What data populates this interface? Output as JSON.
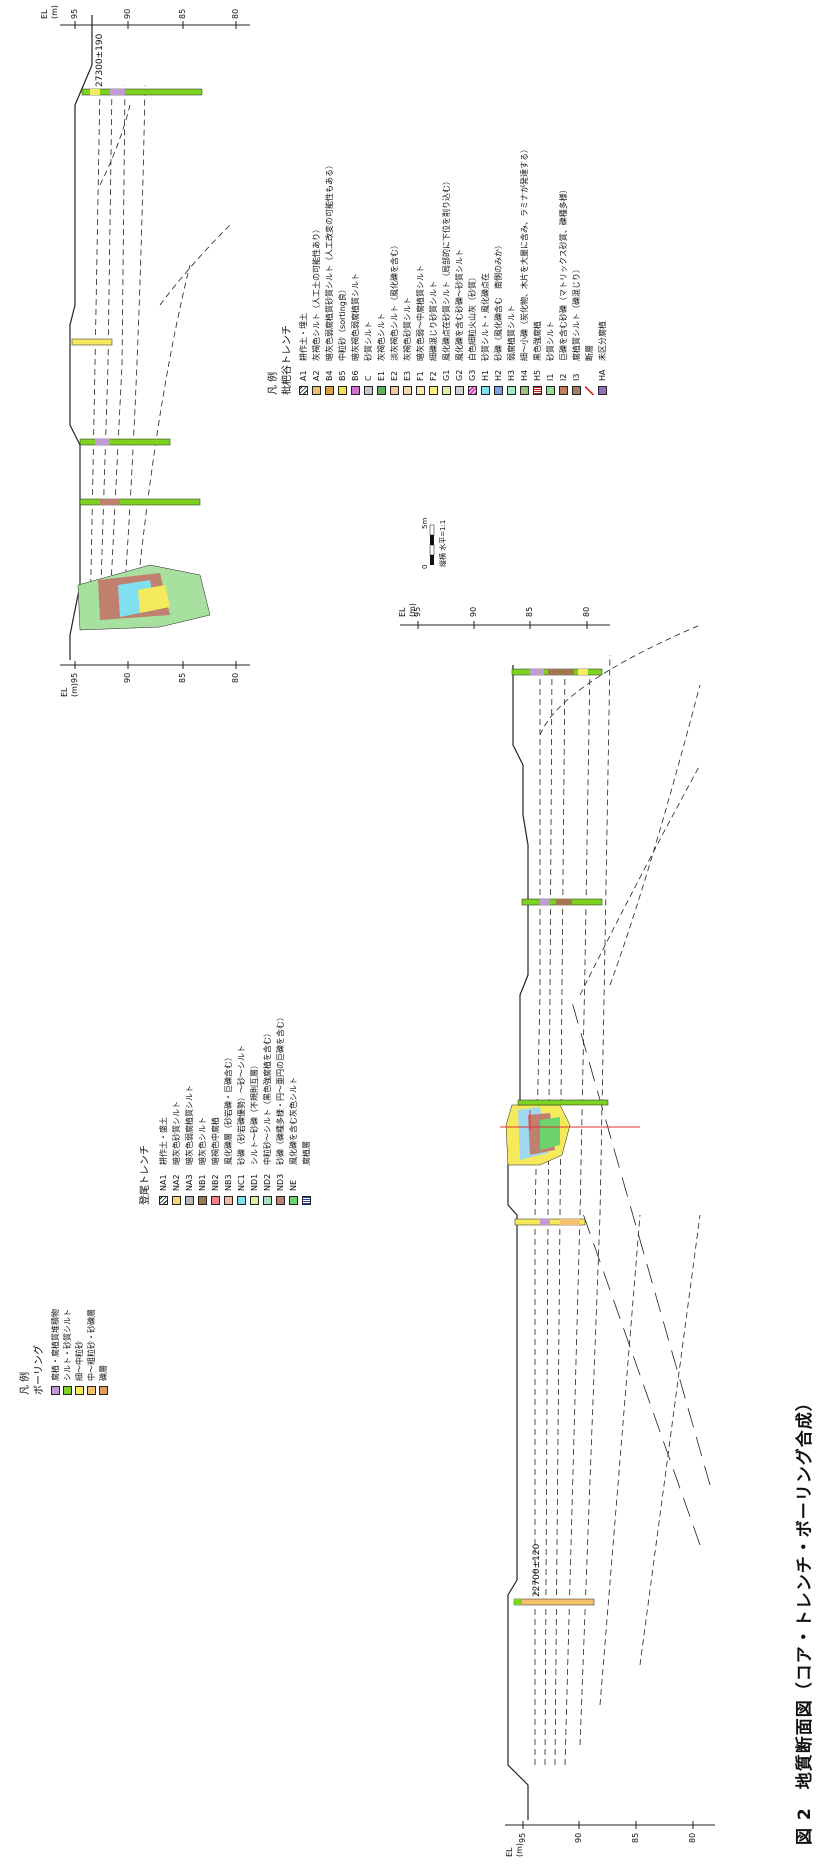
{
  "figure": {
    "title": "図 2　地質断面図（コア・トレンチ・ボーリング合成）",
    "ages": [
      "27300±190",
      "22700±120"
    ]
  },
  "axes": {
    "el_label": "EL",
    "unit": "(m)",
    "ticks": [
      "95",
      "90",
      "85",
      "80"
    ]
  },
  "boring_legend": {
    "header": "凡 例",
    "subheader": "ボーリング",
    "items": [
      {
        "label": "腐植・腐植質堆積物",
        "color": "#c39bd3"
      },
      {
        "label": "シルト・砂質シルト",
        "color": "#7ed321"
      },
      {
        "label": "細～中粒砂",
        "color": "#f4ea5c"
      },
      {
        "label": "中～粗粒砂・砂礫層",
        "color": "#f5c16c"
      },
      {
        "label": "礫層",
        "color": "#e39a5a"
      }
    ]
  },
  "noo_legend": {
    "header": "登尾トレンチ",
    "items": [
      {
        "code": "NA1",
        "label": "耕作土・盛土",
        "color": "#ffffff",
        "hatch": true
      },
      {
        "code": "NA2",
        "label": "暗灰色砂質シルト",
        "color": "#f5d76e"
      },
      {
        "code": "NA3",
        "label": "暗灰色弱腐植質シルト",
        "color": "#b8b8b8"
      },
      {
        "code": "NB1",
        "label": "暗灰色シルト",
        "color": "#a07850"
      },
      {
        "code": "NB2",
        "label": "暗褐色中腐植",
        "color": "#f08090"
      },
      {
        "code": "NB3",
        "label": "風化礫層（砂岩礫・巨礫含む）",
        "color": "#f5b7a0"
      },
      {
        "code": "NC1",
        "label": "砂礫（砂岩礫優勢）～砂～シルト",
        "color": "#7fe0e8"
      },
      {
        "code": "ND1",
        "label": "シルト～砂礫（不規則互層）",
        "color": "#d8f0a0"
      },
      {
        "code": "ND2",
        "label": "中粒砂～シルト（黒色強腐植を含む）",
        "color": "#a8e0c0"
      },
      {
        "code": "ND3",
        "label": "砂礫（礫種多様・円～亜円の巨礫を含む）",
        "color": "#c08070"
      },
      {
        "code": "NE",
        "label": "風化礫を含む灰色シルト",
        "color": "#6dd36d"
      },
      {
        "code": "",
        "label": "腐植層",
        "color": "#ffffff",
        "dotted": true
      }
    ]
  },
  "hana_legend": {
    "header": "凡 例",
    "subheader": "枇杷谷トレンチ",
    "items": [
      {
        "code": "A1",
        "label": "耕作土・埋土",
        "color": "#ffffff",
        "hatch": true
      },
      {
        "code": "A2",
        "label": "灰褐色シルト（人工土の可能性あり）",
        "color": "#e8c070"
      },
      {
        "code": "B4",
        "label": "暗灰色弱腐植質砂質シルト（人工改変の可能性もある）",
        "color": "#d8a040"
      },
      {
        "code": "B5",
        "label": "中粒砂（sorting良）",
        "color": "#f5e050"
      },
      {
        "code": "B6",
        "label": "暗灰褐色弱腐植質シルト",
        "color": "#d070d0"
      },
      {
        "code": "C",
        "label": "砂質シルト",
        "color": "#c8c8c8"
      },
      {
        "code": "E1",
        "label": "灰褐色シルト",
        "color": "#60b060"
      },
      {
        "code": "E2",
        "label": "淡灰褐色シルト（風化礫を含む）",
        "color": "#f0c8a0"
      },
      {
        "code": "E3",
        "label": "灰褐色砂質シルト",
        "color": "#f0d8b0"
      },
      {
        "code": "F1",
        "label": "暗灰色弱～中腐植質シルト",
        "color": "#f8e8b0"
      },
      {
        "code": "F2",
        "label": "細礫混じり砂質シルト",
        "color": "#f8f080"
      },
      {
        "code": "G1",
        "label": "風化礫点在砂質シルト（局部的に下位を削り込む）",
        "color": "#e0f0a0"
      },
      {
        "code": "G2",
        "label": "風化礫を含む砂礫～砂質シルト",
        "color": "#d0d0d0"
      },
      {
        "code": "G3",
        "label": "白色細粒火山灰（砂質）",
        "color": "#e040c0",
        "pattern": true
      },
      {
        "code": "H1",
        "label": "砂質シルト・風化礫点在",
        "color": "#80e0f0"
      },
      {
        "code": "H2",
        "label": "砂礫（風化礫含む　南側のみか）",
        "color": "#80a0e0"
      },
      {
        "code": "H3",
        "label": "弱腐植質シルト",
        "color": "#a0e8c8"
      },
      {
        "code": "H4",
        "label": "細～小礫（炭化物、木片を大量に含み、ラミナが発達する）",
        "color": "#a0c080"
      },
      {
        "code": "H5",
        "label": "黒色強腐植",
        "color": "#c02020",
        "stripes": true
      },
      {
        "code": "I1",
        "label": "砂質シルト",
        "color": "#90e090"
      },
      {
        "code": "I2",
        "label": "巨礫を含む砂礫（マトリックス砂質、礫種多様）",
        "color": "#c08060"
      },
      {
        "code": "I3",
        "label": "腐植質シルト（礫混じり）",
        "color": "#a08060"
      },
      {
        "code": "",
        "label": "断層",
        "color": "#e03030",
        "fault": true
      },
      {
        "code": "HA",
        "label": "未区分腐植",
        "color": "#9070c0"
      }
    ]
  },
  "scale": {
    "label": "縦横 水平=1:1",
    "ticks": [
      "0",
      "5m"
    ]
  }
}
